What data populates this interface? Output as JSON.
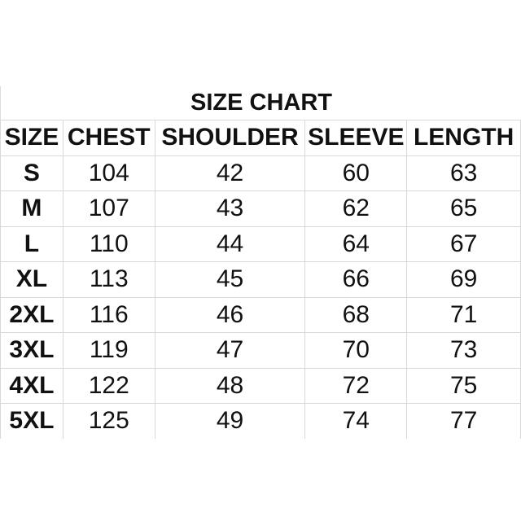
{
  "chart_data": {
    "type": "table",
    "title": "SIZE CHART",
    "columns": [
      "SIZE",
      "CHEST",
      "SHOULDER",
      "SLEEVE",
      "LENGTH"
    ],
    "rows": [
      [
        "S",
        "104",
        "42",
        "60",
        "63"
      ],
      [
        "M",
        "107",
        "43",
        "62",
        "65"
      ],
      [
        "L",
        "110",
        "44",
        "64",
        "67"
      ],
      [
        "XL",
        "113",
        "45",
        "66",
        "69"
      ],
      [
        "2XL",
        "116",
        "46",
        "68",
        "71"
      ],
      [
        "3XL",
        "119",
        "47",
        "70",
        "73"
      ],
      [
        "4XL",
        "122",
        "48",
        "72",
        "75"
      ],
      [
        "5XL",
        "125",
        "49",
        "74",
        "77"
      ]
    ]
  }
}
